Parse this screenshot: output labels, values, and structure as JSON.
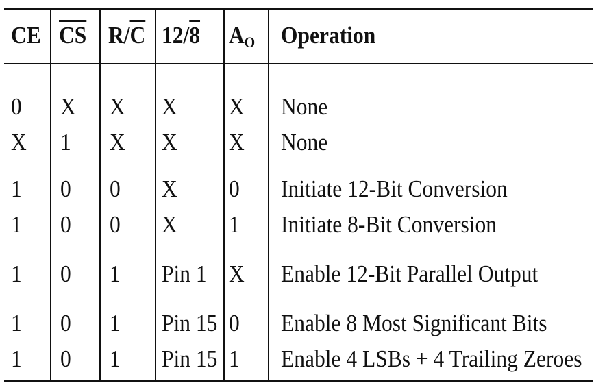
{
  "table": {
    "headers": {
      "ce": "CE",
      "cs": "CS",
      "rc_r": "R/",
      "rc_c": "C",
      "mode_12": "12/",
      "mode_8": "8",
      "a0_main": "A",
      "a0_sub": "O",
      "operation": "Operation"
    },
    "rows": [
      {
        "ce": "0",
        "cs": "X",
        "rc": "X",
        "mode": "X",
        "a0": "X",
        "op": "None"
      },
      {
        "ce": "X",
        "cs": "1",
        "rc": "X",
        "mode": "X",
        "a0": "X",
        "op": "None"
      },
      {
        "ce": "1",
        "cs": "0",
        "rc": "0",
        "mode": "X",
        "a0": "0",
        "op": "Initiate 12-Bit Conversion"
      },
      {
        "ce": "1",
        "cs": "0",
        "rc": "0",
        "mode": "X",
        "a0": "1",
        "op": "Initiate 8-Bit Conversion"
      },
      {
        "ce": "1",
        "cs": "0",
        "rc": "1",
        "mode": "Pin 1",
        "a0": "X",
        "op": "Enable 12-Bit Parallel Output"
      },
      {
        "ce": "1",
        "cs": "0",
        "rc": "1",
        "mode": "Pin 15",
        "a0": "0",
        "op": "Enable 8 Most Significant Bits"
      },
      {
        "ce": "1",
        "cs": "0",
        "rc": "1",
        "mode": "Pin 15",
        "a0": "1",
        "op": "Enable 4 LSBs + 4 Trailing Zeroes"
      }
    ]
  }
}
